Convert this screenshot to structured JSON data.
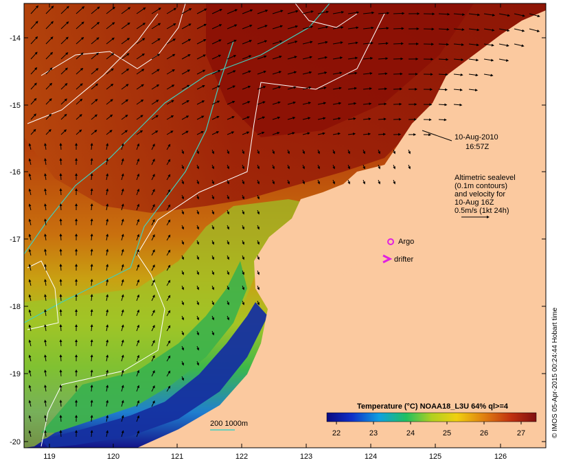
{
  "map": {
    "lon_labels": [
      "119",
      "120",
      "121",
      "122",
      "123",
      "124",
      "125",
      "126"
    ],
    "lat_labels": [
      "-14",
      "-15",
      "-16",
      "-17",
      "-18",
      "-19",
      "-20"
    ],
    "date_label": "10-Aug-2010",
    "time_label": "16:57Z",
    "altimetry_note": [
      "Altimetric sealevel",
      "(0.1m contours)",
      "and velocity for",
      "10-Aug 16Z",
      "0.5m/s (1kt 24h)"
    ],
    "argo_label": "Argo",
    "drifter_label": "drifter",
    "depth_contours_label": "200  1000m",
    "colorbar_title": "Temperature (°C) NOAA18_L3U 64% ql>=4",
    "colorbar_ticks": [
      "22",
      "23",
      "24",
      "25",
      "26",
      "27"
    ],
    "credit": "© IMOS 05-Apr-2015 00:24:44 Hobart time",
    "colors": {
      "land": "#fbc99f",
      "argo": "#e020e0",
      "drifter": "#e020e0",
      "depth_contour": "#40d0c0",
      "sealevel_contour": "#ffffff"
    }
  }
}
